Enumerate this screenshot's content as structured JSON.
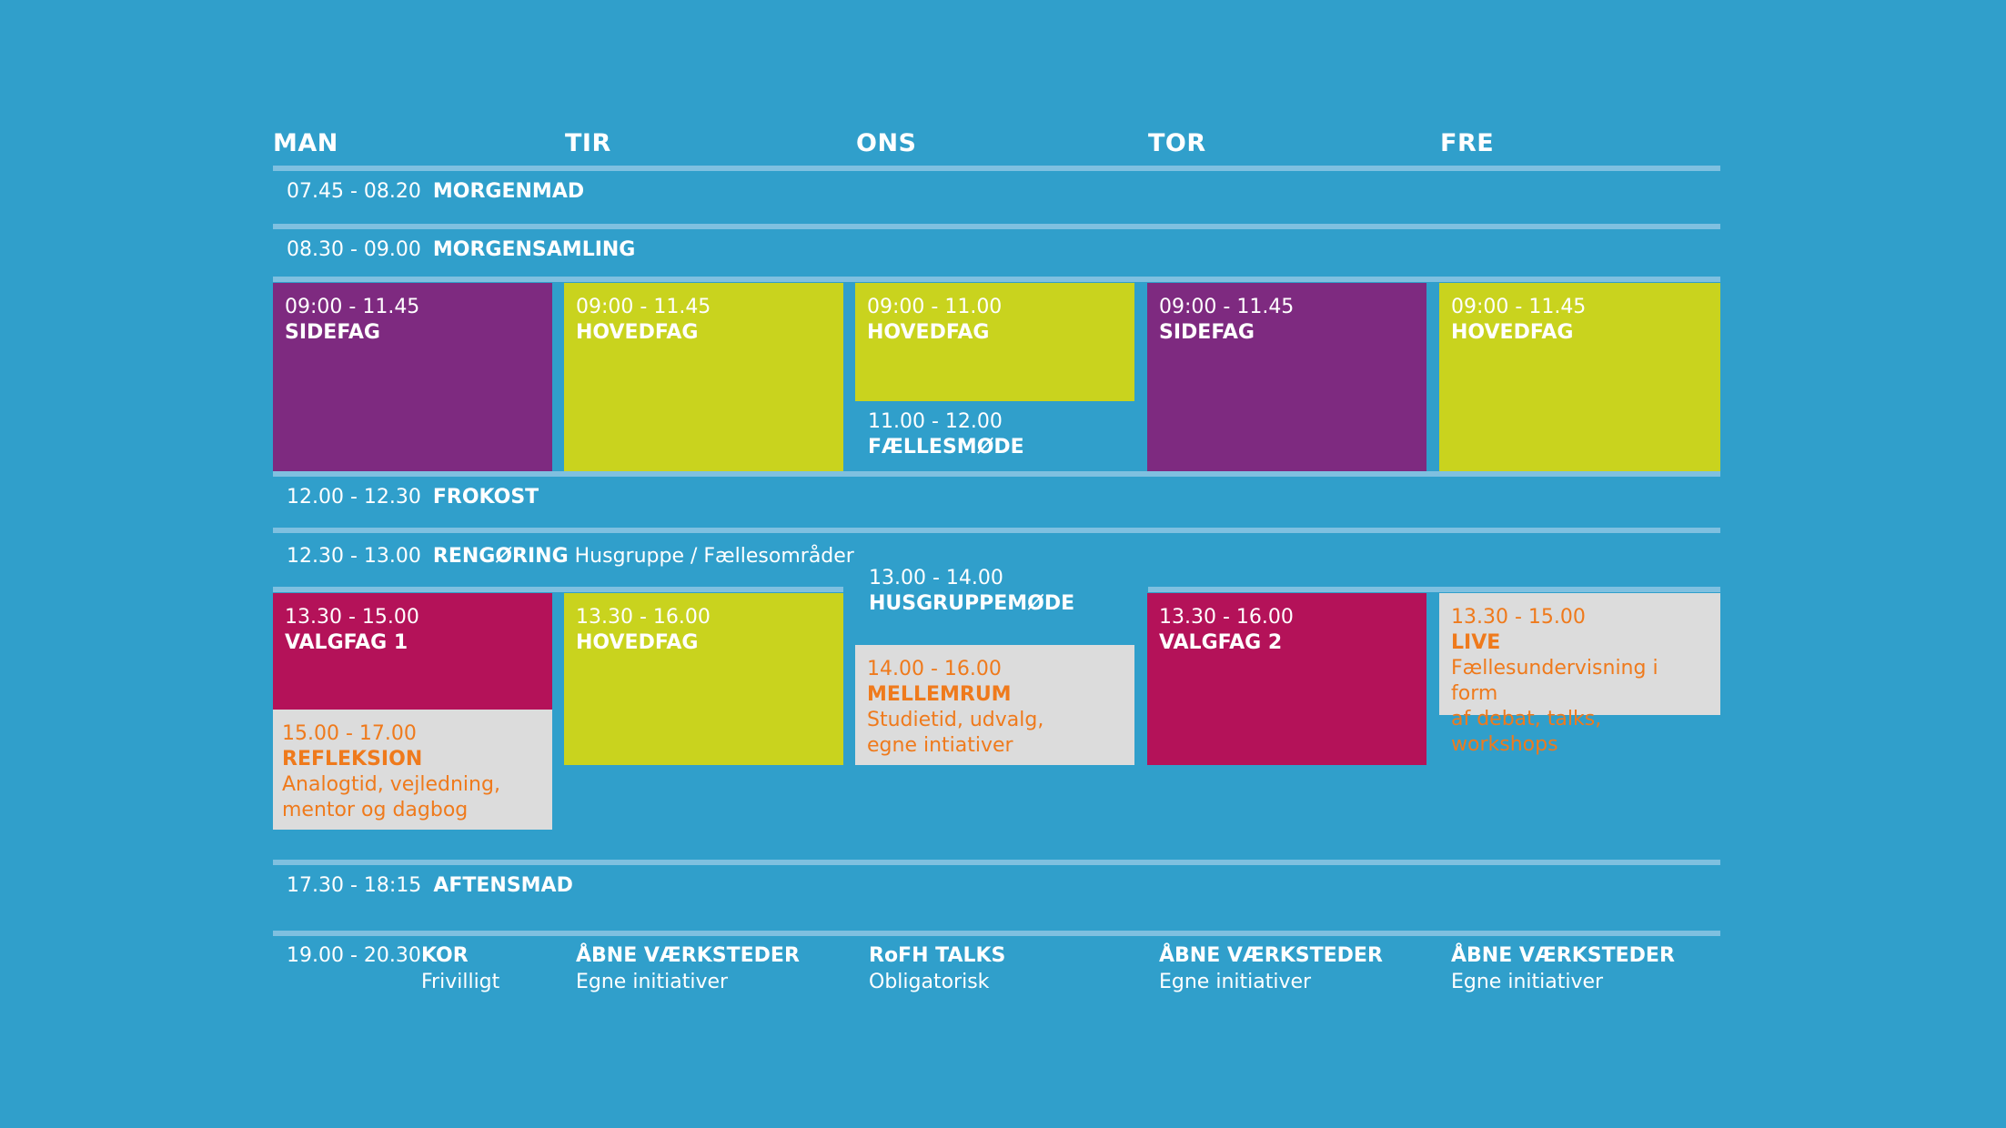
{
  "days": [
    "MAN",
    "TIR",
    "ONS",
    "TOR",
    "FRE"
  ],
  "colors": {
    "background": "#309fcb",
    "rule": "#7fc0e0",
    "purple": "#7e2a80",
    "lime": "#c9d31e",
    "magenta": "#b41259",
    "grey": "#dcdcdc",
    "orange_text": "#ef7a1c"
  },
  "rows": {
    "morgenmad": {
      "time": "07.45 - 08.20",
      "label": "MORGENMAD"
    },
    "morgensamling": {
      "time": "08.30 - 09.00",
      "label": "MORGENSAMLING"
    },
    "frokost": {
      "time": "12.00 - 12.30",
      "label": "FROKOST"
    },
    "rengoring": {
      "time": "12.30 - 13.00",
      "label": "RENGØRING",
      "detail": "Husgruppe / Fællesområder"
    },
    "aftensmad": {
      "time": "17.30 - 18:15",
      "label": "AFTENSMAD"
    }
  },
  "morning": {
    "man": {
      "time": "09:00 - 11.45",
      "label": "SIDEFAG"
    },
    "tir": {
      "time": "09:00 - 11.45",
      "label": "HOVEDFAG"
    },
    "ons": {
      "time": "09:00 - 11.00",
      "label": "HOVEDFAG"
    },
    "ons_meeting": {
      "time": "11.00 - 12.00",
      "label": "FÆLLESMØDE"
    },
    "tor": {
      "time": "09:00 - 11.45",
      "label": "SIDEFAG"
    },
    "fre": {
      "time": "09:00 - 11.45",
      "label": "HOVEDFAG"
    }
  },
  "afternoon": {
    "man": {
      "time": "13.30 - 15.00",
      "label": "VALGFAG 1"
    },
    "man_reflection": {
      "time": "15.00 - 17.00",
      "label": "REFLEKSION",
      "detail1": "Analogtid, vejledning,",
      "detail2": "mentor og dagbog"
    },
    "tir": {
      "time": "13.30 - 16.00",
      "label": "HOVEDFAG"
    },
    "ons_meeting": {
      "time": "13.00 - 14.00",
      "label": "HUSGRUPPEMØDE"
    },
    "ons_mellemrum": {
      "time": "14.00 - 16.00",
      "label": "MELLEMRUM",
      "detail1": "Studietid, udvalg,",
      "detail2": "egne intiativer"
    },
    "tor": {
      "time": "13.30 - 16.00",
      "label": "VALGFAG 2"
    },
    "fre": {
      "time": "13.30 - 15.00",
      "label": "LIVE",
      "detail1": "Fællesundervisning i form",
      "detail2": "af debat, talks, workshops"
    }
  },
  "evening": {
    "time": "19.00 - 20.30",
    "man": {
      "label": "KOR",
      "detail": "Frivilligt"
    },
    "tir": {
      "label": "ÅBNE VÆRKSTEDER",
      "detail": "Egne initiativer"
    },
    "ons": {
      "label": "RoFH TALKS",
      "detail": "Obligatorisk"
    },
    "tor": {
      "label": "ÅBNE VÆRKSTEDER",
      "detail": "Egne initiativer"
    },
    "fre": {
      "label": "ÅBNE VÆRKSTEDER",
      "detail": "Egne initiativer"
    }
  }
}
